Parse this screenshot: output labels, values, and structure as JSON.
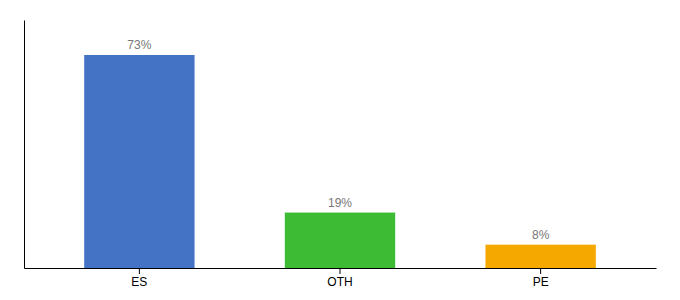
{
  "chart_data": {
    "type": "bar",
    "categories": [
      "ES",
      "OTH",
      "PE"
    ],
    "values": [
      73,
      19,
      8
    ],
    "value_labels": [
      "73%",
      "19%",
      "8%"
    ],
    "colors": [
      "#4472c4",
      "#3dbb35",
      "#f5a800"
    ],
    "ylim": [
      0,
      85
    ],
    "yticks": [],
    "grid": false,
    "data_labels": true,
    "tick_labels": "x"
  }
}
